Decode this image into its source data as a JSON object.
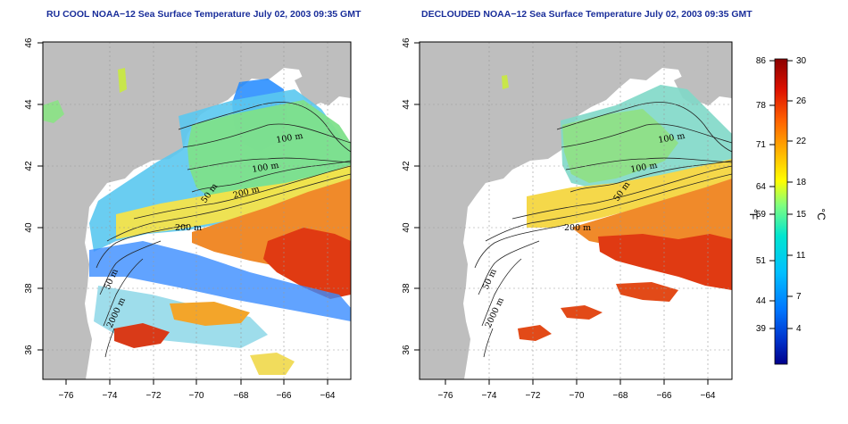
{
  "panels": [
    {
      "id": "left",
      "title": "RU COOL NOAA−12 Sea Surface Temperature July 02, 2003 09:35 GMT"
    },
    {
      "id": "right",
      "title": "DECLOUDED NOAA−12 Sea Surface Temperature July 02, 2003 09:35 GMT"
    }
  ],
  "map": {
    "lon_ticks": [
      "−76",
      "−74",
      "−72",
      "−70",
      "−68",
      "−66",
      "−64"
    ],
    "lat_ticks": [
      "36",
      "38",
      "40",
      "42",
      "44",
      "46"
    ],
    "lon_range": [
      -77,
      -63
    ],
    "lat_range": [
      35,
      46
    ],
    "land_color": "#bebebe",
    "contour_labels_left": [
      "200 m",
      "100 m",
      "100 m",
      "50 m",
      "200 m",
      "50 m",
      "2000 m"
    ],
    "contour_labels_right": [
      "100 m",
      "100 m",
      "50 m",
      "200 m",
      "50 m",
      "2000 m"
    ]
  },
  "colorbar": {
    "fahrenheit_ticks": [
      "86",
      "78",
      "71",
      "64",
      "59",
      "51",
      "44",
      "39"
    ],
    "celsius_ticks": [
      "30",
      "26",
      "22",
      "18",
      "15",
      "11",
      "7",
      "4"
    ],
    "unit_f": "°F",
    "unit_c": "°C",
    "colors": [
      "#00008b",
      "#0033cc",
      "#0066ff",
      "#00aaff",
      "#00e5e5",
      "#7fff7f",
      "#ffff00",
      "#ffaa00",
      "#ff5500",
      "#dd0000",
      "#8b0000"
    ]
  }
}
